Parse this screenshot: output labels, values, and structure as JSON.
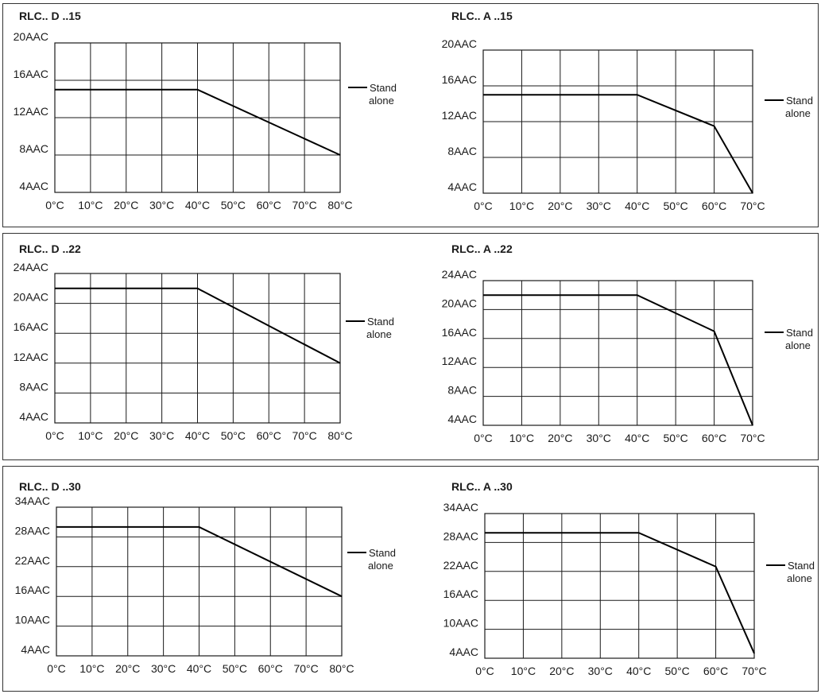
{
  "chart_data": [
    {
      "type": "line",
      "title": "RLC.. D ..15",
      "x": [
        0,
        10,
        20,
        30,
        40,
        50,
        60,
        70,
        80
      ],
      "xlabels": [
        "0°C",
        "10°C",
        "20°C",
        "30°C",
        "40°C",
        "50°C",
        "60°C",
        "70°C",
        "80°C"
      ],
      "ylabels": [
        "20AAC",
        "16AAC",
        "12AAC",
        "8AAC",
        "4AAC"
      ],
      "ylim": [
        4,
        20
      ],
      "series": [
        {
          "name": "Stand alone",
          "x": [
            0,
            40,
            80
          ],
          "y": [
            15,
            15,
            8
          ]
        }
      ],
      "legend": {
        "line1": "Stand",
        "line2": "alone"
      },
      "grid": true
    },
    {
      "type": "line",
      "title": "RLC.. A ..15",
      "x": [
        0,
        10,
        20,
        30,
        40,
        50,
        60,
        70
      ],
      "xlabels": [
        "0°C",
        "10°C",
        "20°C",
        "30°C",
        "40°C",
        "50°C",
        "60°C",
        "70°C"
      ],
      "ylabels": [
        "20AAC",
        "16AAC",
        "12AAC",
        "8AAC",
        "4AAC"
      ],
      "ylim": [
        4,
        20
      ],
      "series": [
        {
          "name": "Stand alone",
          "x": [
            0,
            40,
            60,
            70
          ],
          "y": [
            15,
            15,
            11.5,
            4
          ]
        }
      ],
      "legend": {
        "line1": "Stand",
        "line2": "alone"
      },
      "grid": true
    },
    {
      "type": "line",
      "title": "RLC.. D ..22",
      "x": [
        0,
        10,
        20,
        30,
        40,
        50,
        60,
        70,
        80
      ],
      "xlabels": [
        "0°C",
        "10°C",
        "20°C",
        "30°C",
        "40°C",
        "50°C",
        "60°C",
        "70°C",
        "80°C"
      ],
      "ylabels": [
        "24AAC",
        "20AAC",
        "16AAC",
        "12AAC",
        "8AAC",
        "4AAC"
      ],
      "ylim": [
        4,
        24
      ],
      "series": [
        {
          "name": "Stand alone",
          "x": [
            0,
            40,
            80
          ],
          "y": [
            22,
            22,
            12
          ]
        }
      ],
      "legend": {
        "line1": "Stand",
        "line2": "alone"
      },
      "grid": true
    },
    {
      "type": "line",
      "title": "RLC.. A ..22",
      "x": [
        0,
        10,
        20,
        30,
        40,
        50,
        60,
        70
      ],
      "xlabels": [
        "0°C",
        "10°C",
        "20°C",
        "30°C",
        "40°C",
        "50°C",
        "60°C",
        "70°C"
      ],
      "ylabels": [
        "24AAC",
        "20AAC",
        "16AAC",
        "12AAC",
        "8AAC",
        "4AAC"
      ],
      "ylim": [
        4,
        24
      ],
      "series": [
        {
          "name": "Stand alone",
          "x": [
            0,
            40,
            60,
            70
          ],
          "y": [
            22,
            22,
            17,
            4
          ]
        }
      ],
      "legend": {
        "line1": "Stand",
        "line2": "alone"
      },
      "grid": true
    },
    {
      "type": "line",
      "title": "RLC.. D ..30",
      "x": [
        0,
        10,
        20,
        30,
        40,
        50,
        60,
        70,
        80
      ],
      "xlabels": [
        "0°C",
        "10°C",
        "20°C",
        "30°C",
        "40°C",
        "50°C",
        "60°C",
        "70°C",
        "80°C"
      ],
      "ylabels": [
        "34AAC",
        "28AAC",
        "22AAC",
        "16AAC",
        "10AAC",
        "4AAC"
      ],
      "ylim": [
        4,
        34
      ],
      "series": [
        {
          "name": "Stand alone",
          "x": [
            0,
            40,
            80
          ],
          "y": [
            30,
            30,
            16
          ]
        }
      ],
      "legend": {
        "line1": "Stand",
        "line2": "alone"
      },
      "grid": true
    },
    {
      "type": "line",
      "title": "RLC.. A ..30",
      "x": [
        0,
        10,
        20,
        30,
        40,
        50,
        60,
        70
      ],
      "xlabels": [
        "0°C",
        "10°C",
        "20°C",
        "30°C",
        "40°C",
        "50°C",
        "60°C",
        "70°C"
      ],
      "ylabels": [
        "34AAC",
        "28AAC",
        "22AAC",
        "16AAC",
        "10AAC",
        "4AAC"
      ],
      "ylim": [
        4,
        34
      ],
      "series": [
        {
          "name": "Stand alone",
          "x": [
            0,
            40,
            60,
            70
          ],
          "y": [
            30,
            30,
            23,
            5
          ]
        }
      ],
      "legend": {
        "line1": "Stand",
        "line2": "alone"
      },
      "grid": true
    }
  ]
}
